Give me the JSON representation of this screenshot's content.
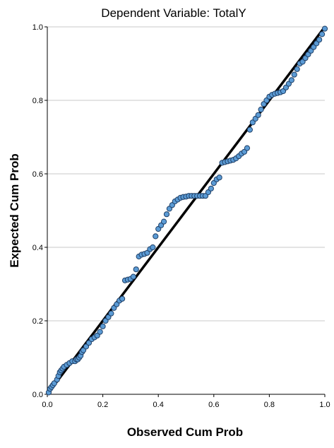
{
  "chart_data": {
    "type": "scatter",
    "title": "Dependent Variable: TotalY",
    "xlabel": "Observed Cum Prob",
    "ylabel": "Expected Cum Prob",
    "xlim": [
      0,
      1
    ],
    "ylim": [
      0,
      1
    ],
    "x_ticks": [
      "0.0",
      "0.2",
      "0.4",
      "0.6",
      "0.8",
      "1.0"
    ],
    "y_ticks": [
      "0.0",
      "0.2",
      "0.4",
      "0.6",
      "0.8",
      "1.0"
    ],
    "grid": "horizontal",
    "reference_line": {
      "from": [
        0,
        0
      ],
      "to": [
        1,
        1
      ],
      "color": "#000000"
    },
    "point_color": "#5b9bd5",
    "point_edge_color": "#1f3f66",
    "points": [
      [
        0.005,
        0.005
      ],
      [
        0.01,
        0.015
      ],
      [
        0.015,
        0.02
      ],
      [
        0.02,
        0.025
      ],
      [
        0.025,
        0.03
      ],
      [
        0.035,
        0.04
      ],
      [
        0.04,
        0.05
      ],
      [
        0.045,
        0.06
      ],
      [
        0.05,
        0.065
      ],
      [
        0.055,
        0.07
      ],
      [
        0.06,
        0.075
      ],
      [
        0.07,
        0.08
      ],
      [
        0.08,
        0.085
      ],
      [
        0.09,
        0.09
      ],
      [
        0.1,
        0.09
      ],
      [
        0.105,
        0.095
      ],
      [
        0.11,
        0.095
      ],
      [
        0.115,
        0.1
      ],
      [
        0.12,
        0.105
      ],
      [
        0.125,
        0.115
      ],
      [
        0.13,
        0.12
      ],
      [
        0.14,
        0.13
      ],
      [
        0.15,
        0.14
      ],
      [
        0.16,
        0.15
      ],
      [
        0.17,
        0.155
      ],
      [
        0.18,
        0.16
      ],
      [
        0.19,
        0.17
      ],
      [
        0.2,
        0.185
      ],
      [
        0.21,
        0.2
      ],
      [
        0.22,
        0.21
      ],
      [
        0.23,
        0.22
      ],
      [
        0.24,
        0.235
      ],
      [
        0.25,
        0.245
      ],
      [
        0.26,
        0.255
      ],
      [
        0.27,
        0.26
      ],
      [
        0.28,
        0.31
      ],
      [
        0.29,
        0.312
      ],
      [
        0.3,
        0.314
      ],
      [
        0.31,
        0.32
      ],
      [
        0.32,
        0.34
      ],
      [
        0.33,
        0.375
      ],
      [
        0.34,
        0.38
      ],
      [
        0.35,
        0.382
      ],
      [
        0.36,
        0.385
      ],
      [
        0.37,
        0.395
      ],
      [
        0.38,
        0.4
      ],
      [
        0.39,
        0.43
      ],
      [
        0.4,
        0.45
      ],
      [
        0.41,
        0.46
      ],
      [
        0.42,
        0.47
      ],
      [
        0.43,
        0.49
      ],
      [
        0.44,
        0.505
      ],
      [
        0.45,
        0.515
      ],
      [
        0.46,
        0.525
      ],
      [
        0.47,
        0.53
      ],
      [
        0.48,
        0.535
      ],
      [
        0.49,
        0.537
      ],
      [
        0.5,
        0.538
      ],
      [
        0.51,
        0.54
      ],
      [
        0.52,
        0.54
      ],
      [
        0.53,
        0.54
      ],
      [
        0.54,
        0.54
      ],
      [
        0.55,
        0.54
      ],
      [
        0.56,
        0.54
      ],
      [
        0.57,
        0.54
      ],
      [
        0.58,
        0.55
      ],
      [
        0.59,
        0.56
      ],
      [
        0.6,
        0.575
      ],
      [
        0.61,
        0.585
      ],
      [
        0.62,
        0.59
      ],
      [
        0.63,
        0.63
      ],
      [
        0.64,
        0.632
      ],
      [
        0.65,
        0.634
      ],
      [
        0.66,
        0.636
      ],
      [
        0.67,
        0.638
      ],
      [
        0.68,
        0.642
      ],
      [
        0.69,
        0.648
      ],
      [
        0.7,
        0.655
      ],
      [
        0.71,
        0.66
      ],
      [
        0.72,
        0.67
      ],
      [
        0.73,
        0.72
      ],
      [
        0.74,
        0.74
      ],
      [
        0.75,
        0.75
      ],
      [
        0.76,
        0.76
      ],
      [
        0.77,
        0.775
      ],
      [
        0.78,
        0.79
      ],
      [
        0.79,
        0.8
      ],
      [
        0.8,
        0.81
      ],
      [
        0.81,
        0.815
      ],
      [
        0.82,
        0.818
      ],
      [
        0.83,
        0.82
      ],
      [
        0.84,
        0.822
      ],
      [
        0.85,
        0.825
      ],
      [
        0.86,
        0.835
      ],
      [
        0.87,
        0.845
      ],
      [
        0.88,
        0.855
      ],
      [
        0.89,
        0.87
      ],
      [
        0.9,
        0.885
      ],
      [
        0.91,
        0.9
      ],
      [
        0.92,
        0.905
      ],
      [
        0.93,
        0.915
      ],
      [
        0.94,
        0.925
      ],
      [
        0.95,
        0.935
      ],
      [
        0.96,
        0.945
      ],
      [
        0.97,
        0.955
      ],
      [
        0.98,
        0.965
      ],
      [
        0.99,
        0.98
      ],
      [
        1.0,
        0.995
      ]
    ]
  }
}
